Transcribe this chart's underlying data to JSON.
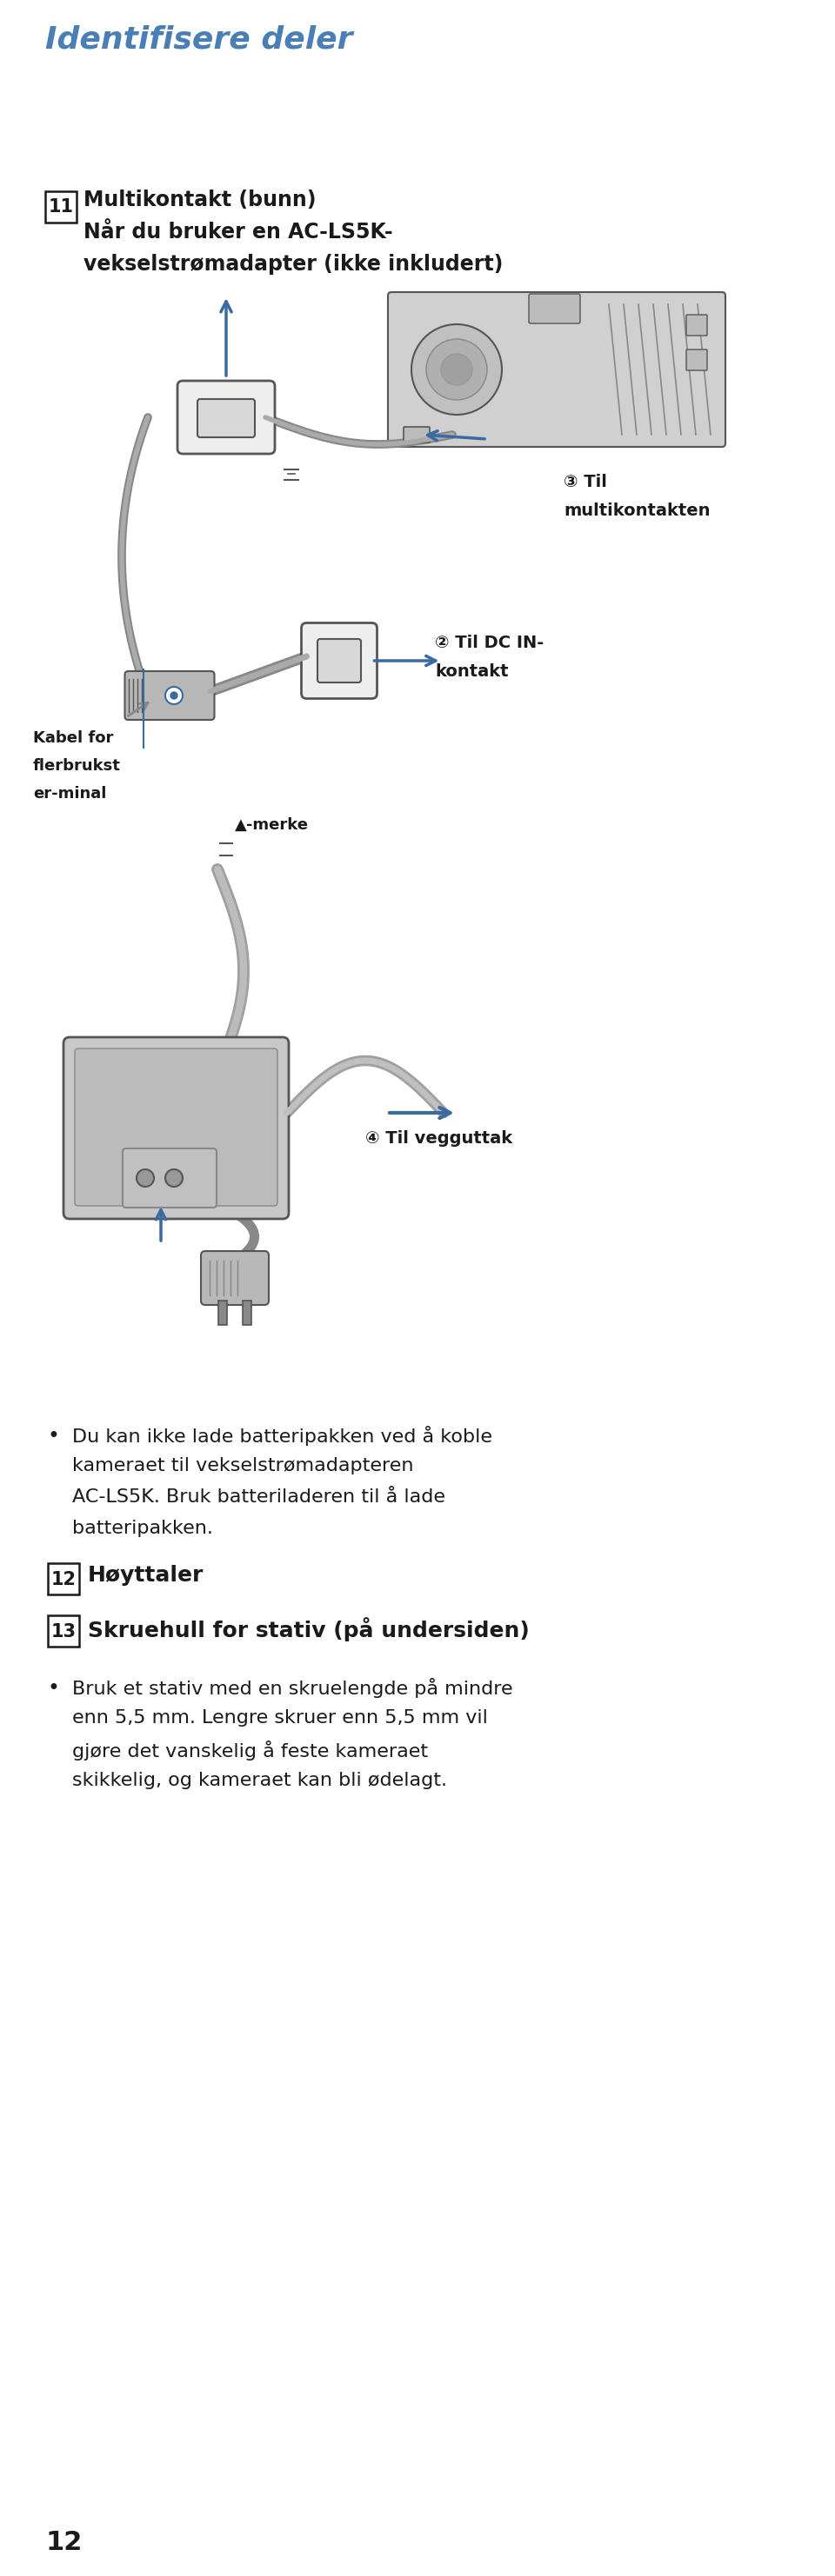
{
  "title": "Identifisere deler",
  "title_color": "#4a7fb5",
  "background_color": "#ffffff",
  "item11_number": "11",
  "item11_line1": "Multikontakt (bunn)",
  "item11_line2": "Når du bruker en AC-LS5K-",
  "item11_line3": "vekselstrømadapter (ikke inkludert)",
  "label2_a": "③ Til",
  "label2_b": "multikontakten",
  "label1_a": "② Til DC IN-",
  "label1_b": "kontakt",
  "label_kabel_a": "Kabel for",
  "label_kabel_b": "flerbrukst",
  "label_kabel_c": "er-minal",
  "label_merke": "▲-merke",
  "label3": "④ Til vegguttak",
  "bullet1_text": "Du kan ikke lade batteripakken ved å koble\nkameraet til vekselstrømadapteren\nAC-LS5K. Bruk batteriladeren til å lade\nbatteripakken.",
  "item12_number": "12",
  "item12_text": "Høyttaler",
  "item13_number": "13",
  "item13_text": "Skruehull for stativ (på undersiden)",
  "bullet2_text": "Bruk et stativ med en skruelengde på mindre\nenn 5,5 mm. Lengre skruer enn 5,5 mm vil\ngjøre det vanskelig å feste kameraet\nskikkelig, og kameraet kan bli ødelagt.",
  "page_number": "12",
  "blue": "#3a6aa0",
  "black": "#1a1a1a",
  "gray_dark": "#555555",
  "gray_mid": "#888888",
  "gray_light": "#cccccc",
  "gray_lighter": "#dddddd",
  "gray_body": "#b8b8b8"
}
